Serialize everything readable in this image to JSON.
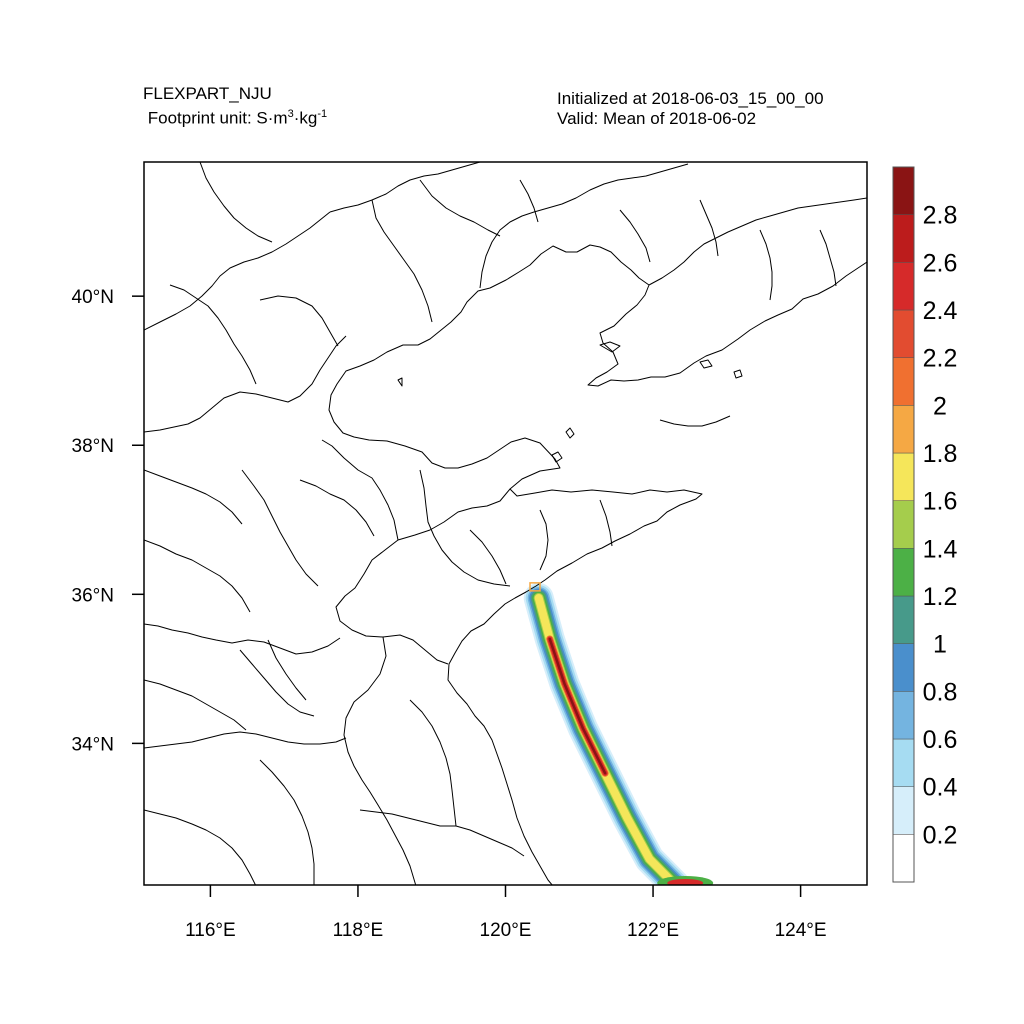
{
  "header": {
    "model": "FLEXPART_NJU",
    "footprint_prefix": "Footprint  unit: S",
    "unit_dot1": "·",
    "unit_m": "m",
    "unit_m_exp": "3",
    "unit_dot2": "·",
    "unit_kg": "kg",
    "unit_kg_exp": "-1",
    "initialized": "Initialized at 2018-06-03_15_00_00",
    "valid": "Valid: Mean of 2018-06-02"
  },
  "map": {
    "lon_range": [
      115.1,
      124.9
    ],
    "lat_range": [
      32.1,
      41.8
    ],
    "lat_ticks": [
      {
        "value": 34,
        "label": "34°N"
      },
      {
        "value": 36,
        "label": "36°N"
      },
      {
        "value": 38,
        "label": "38°N"
      },
      {
        "value": 40,
        "label": "40°N"
      }
    ],
    "lon_ticks": [
      {
        "value": 116,
        "label": "116°E"
      },
      {
        "value": 118,
        "label": "118°E"
      },
      {
        "value": 120,
        "label": "120°E"
      },
      {
        "value": 122,
        "label": "122°E"
      },
      {
        "value": 124,
        "label": "124°E"
      }
    ],
    "release_site": {
      "lon": 120.4,
      "lat": 36.1
    },
    "plume_track": [
      {
        "lon": 120.45,
        "lat": 35.95
      },
      {
        "lon": 120.6,
        "lat": 35.4
      },
      {
        "lon": 120.8,
        "lat": 34.8
      },
      {
        "lon": 121.05,
        "lat": 34.2
      },
      {
        "lon": 121.35,
        "lat": 33.6
      },
      {
        "lon": 121.65,
        "lat": 33.0
      },
      {
        "lon": 121.95,
        "lat": 32.45
      },
      {
        "lon": 122.3,
        "lat": 32.1
      }
    ]
  },
  "colorbar": {
    "labels": [
      "0.2",
      "0.4",
      "0.6",
      "0.8",
      "1",
      "1.2",
      "1.4",
      "1.6",
      "1.8",
      "2",
      "2.2",
      "2.4",
      "2.6",
      "2.8"
    ],
    "colors": [
      "#ffffff",
      "#d6eefa",
      "#a6dcf2",
      "#74b4e0",
      "#4a8fcc",
      "#479a8a",
      "#4cb046",
      "#a5cd4c",
      "#f5e65a",
      "#f5a844",
      "#f07030",
      "#e24c30",
      "#d62a2a",
      "#bc1c1c",
      "#8a1414"
    ]
  }
}
